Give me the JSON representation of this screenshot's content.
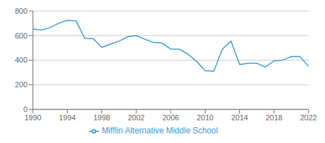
{
  "chart_data": {
    "type": "line",
    "x": [
      1990,
      1991,
      1992,
      1993,
      1994,
      1995,
      1996,
      1997,
      1998,
      1999,
      2000,
      2001,
      2002,
      2003,
      2004,
      2005,
      2006,
      2007,
      2008,
      2009,
      2010,
      2011,
      2012,
      2013,
      2014,
      2015,
      2016,
      2017,
      2018,
      2019,
      2020,
      2021,
      2022
    ],
    "series": [
      {
        "name": "Mifflin Alternative Middle School",
        "color": "#3b9ad9",
        "values": [
          655,
          645,
          665,
          700,
          725,
          720,
          580,
          575,
          505,
          530,
          555,
          590,
          600,
          570,
          545,
          540,
          490,
          490,
          450,
          390,
          315,
          310,
          490,
          555,
          365,
          375,
          375,
          345,
          395,
          400,
          430,
          430,
          350
        ]
      }
    ],
    "xlim": [
      1990,
      2022
    ],
    "xticks": [
      1990,
      1994,
      1998,
      2002,
      2006,
      2010,
      2014,
      2018,
      2022
    ],
    "ylim": [
      0,
      800
    ],
    "yticks": [
      0,
      200,
      400,
      600,
      800
    ],
    "grid": true,
    "legend": "bottom"
  }
}
